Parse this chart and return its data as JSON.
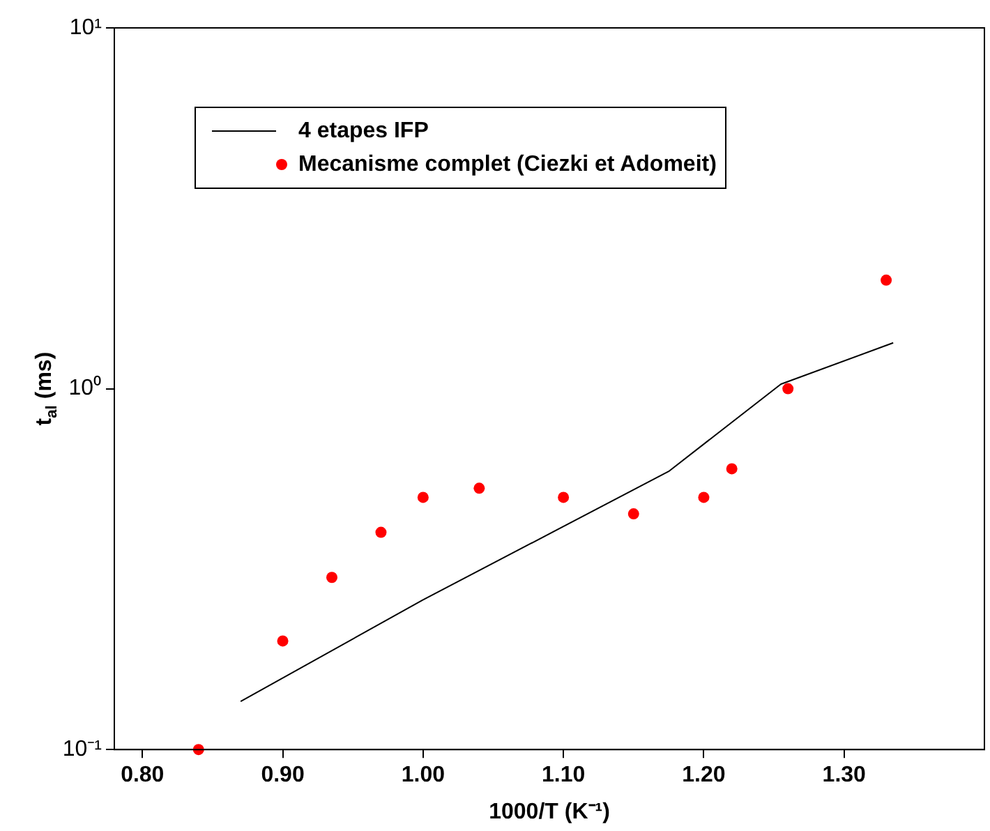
{
  "chart_data": {
    "type": "scatter",
    "xlabel": "1000/T (K⁻¹)",
    "ylabel": "t$_{al}$ (ms)",
    "xlim": [
      0.78,
      1.4
    ],
    "xticks": [
      {
        "value": 0.8,
        "label": "0.80"
      },
      {
        "value": 0.9,
        "label": "0.90"
      },
      {
        "value": 1.0,
        "label": "1.00"
      },
      {
        "value": 1.1,
        "label": "1.10"
      },
      {
        "value": 1.2,
        "label": "1.20"
      },
      {
        "value": 1.3,
        "label": "1.30"
      }
    ],
    "ylim": [
      0.1,
      10
    ],
    "yticks": [
      {
        "value": 0.1,
        "label": "10⁻¹"
      },
      {
        "value": 1,
        "label": "10⁰"
      },
      {
        "value": 10,
        "label": "10¹"
      }
    ],
    "log": "y",
    "grid": false,
    "legend": "top left",
    "series": [
      {
        "name": "4 etapes IFP",
        "type": "line",
        "color": "#000000",
        "marker": "none",
        "line_style": "solid",
        "x": [
          0.87,
          1.0,
          1.175,
          1.255,
          1.335
        ],
        "values": [
          0.136,
          0.26,
          0.59,
          1.03,
          1.34
        ]
      },
      {
        "name": "Mecanisme complet (Ciezki et Adomeit)",
        "type": "scatter",
        "color": "#ff0000",
        "marker": "circle",
        "x": [
          0.84,
          0.9,
          0.935,
          0.97,
          1.0,
          1.04,
          1.1,
          1.15,
          1.2,
          1.22,
          1.26,
          1.33
        ],
        "values": [
          0.1,
          0.2,
          0.3,
          0.4,
          0.5,
          0.53,
          0.5,
          0.45,
          0.5,
          0.6,
          1.0,
          2.0
        ]
      }
    ]
  }
}
